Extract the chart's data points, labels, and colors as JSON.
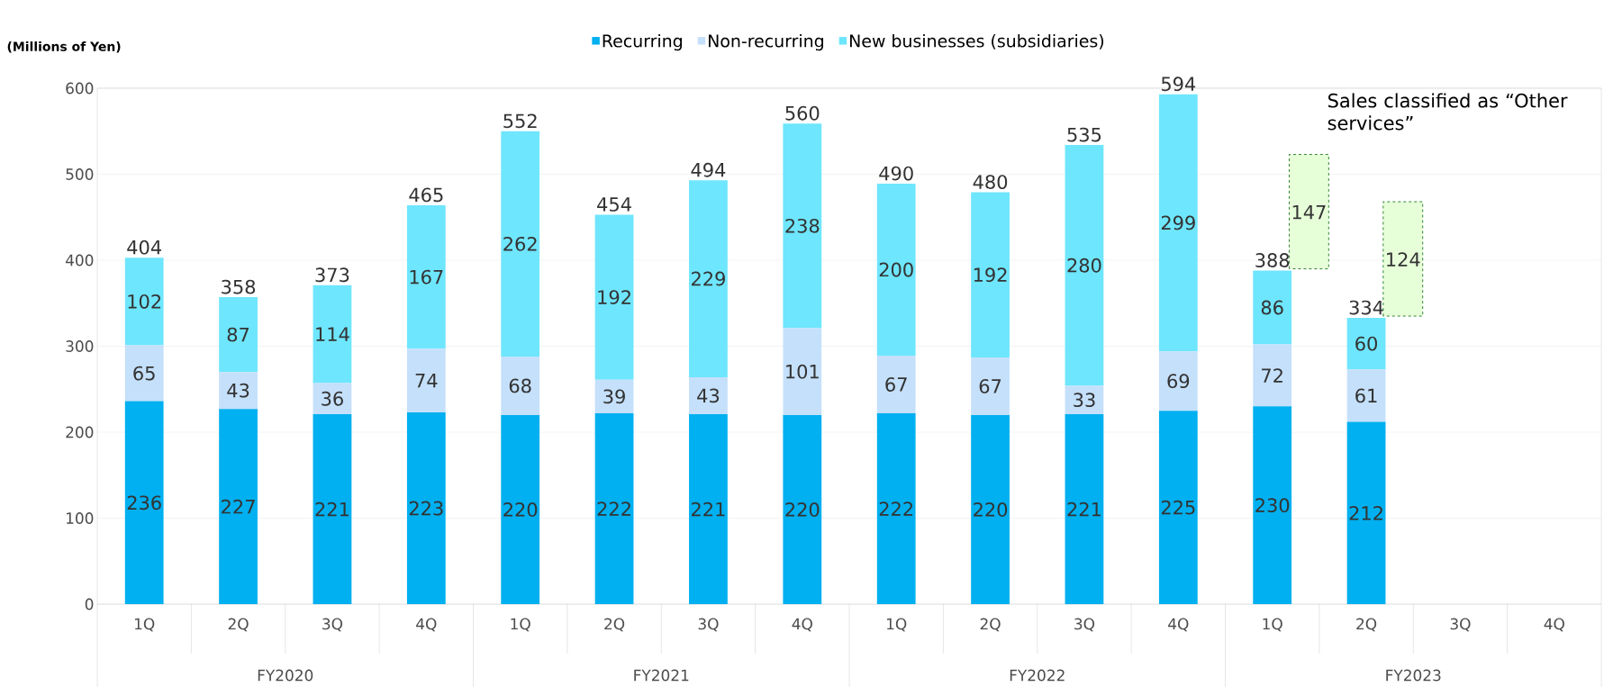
{
  "chart_data": {
    "type": "bar",
    "stacked": true,
    "ylabel": "(Millions of Yen)",
    "categories": [
      "1Q",
      "2Q",
      "3Q",
      "4Q",
      "1Q",
      "2Q",
      "3Q",
      "4Q",
      "1Q",
      "2Q",
      "3Q",
      "4Q",
      "1Q",
      "2Q",
      "3Q",
      "4Q"
    ],
    "series": [
      {
        "name": "Recurring",
        "color": "#00b0f0",
        "values": [
          236,
          227,
          221,
          223,
          220,
          222,
          221,
          220,
          222,
          220,
          221,
          225,
          230,
          212,
          null,
          null
        ]
      },
      {
        "name": "Non-recurring",
        "color": "#c5e0fb",
        "values": [
          65,
          43,
          36,
          74,
          68,
          39,
          43,
          101,
          67,
          67,
          33,
          69,
          72,
          61,
          null,
          null
        ]
      },
      {
        "name": "New businesses (subsidiaries)",
        "color": "#6ee6fd",
        "values": [
          102,
          87,
          114,
          167,
          262,
          192,
          229,
          238,
          200,
          192,
          280,
          299,
          86,
          60,
          null,
          null
        ]
      }
    ],
    "totals": [
      "404",
      "358",
      "373",
      "465",
      "552",
      "454",
      "494",
      "560",
      "490",
      "480",
      "535",
      "594",
      "388",
      "334"
    ],
    "data_labels": true,
    "ylim": [
      0,
      600
    ],
    "yticks": [
      0,
      100,
      200,
      300,
      400,
      500,
      600
    ],
    "grid": "y",
    "legend": "top",
    "annotations": [
      "FY2020",
      "FY2021",
      "FY2022",
      "FY2023",
      "Sales classified as “Other services”",
      "147",
      "124"
    ]
  }
}
